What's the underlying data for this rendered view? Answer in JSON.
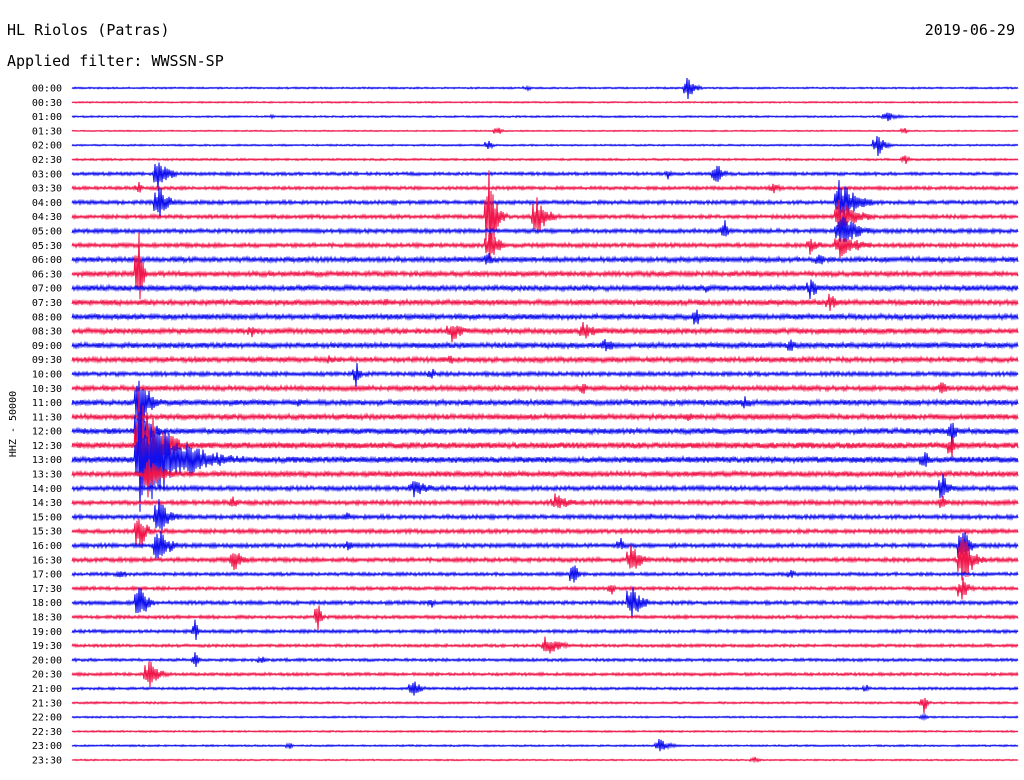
{
  "header": {
    "station": "HL Riolos (Patras)",
    "date": "2019-06-29",
    "filter": "Applied filter: WWSSN-SP"
  },
  "colors": {
    "trace_a": "#1010ee",
    "trace_b": "#f0164a",
    "background": "#ffffff",
    "text": "#000000"
  },
  "chart_data": {
    "type": "line",
    "ylabel": "HHZ - 50000",
    "row_labels": [
      "00:00",
      "00:30",
      "01:00",
      "01:30",
      "02:00",
      "02:30",
      "03:00",
      "03:30",
      "04:00",
      "04:30",
      "05:00",
      "05:30",
      "06:00",
      "06:30",
      "07:00",
      "07:30",
      "08:00",
      "08:30",
      "09:00",
      "09:30",
      "10:00",
      "10:30",
      "11:00",
      "11:30",
      "12:00",
      "12:30",
      "13:00",
      "13:30",
      "14:00",
      "14:30",
      "15:00",
      "15:30",
      "16:00",
      "16:30",
      "17:00",
      "17:30",
      "18:00",
      "18:30",
      "19:00",
      "19:30",
      "20:00",
      "20:30",
      "21:00",
      "21:30",
      "22:00",
      "22:30",
      "23:00",
      "23:30"
    ],
    "row_noise_level": [
      0.8,
      0.7,
      0.8,
      0.6,
      0.8,
      1.0,
      1.5,
      1.6,
      1.8,
      1.8,
      2.0,
      2.0,
      2.4,
      2.4,
      2.6,
      2.6,
      2.6,
      2.6,
      2.6,
      2.4,
      2.0,
      2.4,
      2.6,
      2.6,
      2.8,
      3.0,
      3.0,
      2.6,
      2.2,
      2.2,
      2.0,
      2.0,
      2.0,
      2.0,
      1.6,
      1.6,
      1.8,
      1.6,
      1.6,
      1.4,
      1.4,
      1.4,
      1.2,
      1.0,
      0.8,
      0.8,
      0.8,
      0.7
    ],
    "events": [
      {
        "row": 0,
        "t": 0.65,
        "amp": 14,
        "dur": 0.02
      },
      {
        "row": 0,
        "t": 0.48,
        "amp": 3,
        "dur": 0.02
      },
      {
        "row": 2,
        "t": 0.86,
        "amp": 6,
        "dur": 0.03
      },
      {
        "row": 2,
        "t": 0.21,
        "amp": 2,
        "dur": 0.02
      },
      {
        "row": 3,
        "t": 0.88,
        "amp": 4,
        "dur": 0.01
      },
      {
        "row": 3,
        "t": 0.45,
        "amp": 6,
        "dur": 0.01
      },
      {
        "row": 4,
        "t": 0.44,
        "amp": 8,
        "dur": 0.01
      },
      {
        "row": 4,
        "t": 0.85,
        "amp": 16,
        "dur": 0.02
      },
      {
        "row": 5,
        "t": 0.88,
        "amp": 8,
        "dur": 0.01
      },
      {
        "row": 6,
        "t": 0.68,
        "amp": 14,
        "dur": 0.02
      },
      {
        "row": 6,
        "t": 0.09,
        "amp": 20,
        "dur": 0.03
      },
      {
        "row": 6,
        "t": 0.63,
        "amp": 6,
        "dur": 0.02
      },
      {
        "row": 7,
        "t": 0.74,
        "amp": 8,
        "dur": 0.02
      },
      {
        "row": 7,
        "t": 0.07,
        "amp": 8,
        "dur": 0.01
      },
      {
        "row": 8,
        "t": 0.09,
        "amp": 22,
        "dur": 0.03
      },
      {
        "row": 8,
        "t": 0.81,
        "amp": 26,
        "dur": 0.05
      },
      {
        "row": 9,
        "t": 0.44,
        "amp": 60,
        "dur": 0.02
      },
      {
        "row": 9,
        "t": 0.49,
        "amp": 26,
        "dur": 0.03
      },
      {
        "row": 9,
        "t": 0.81,
        "amp": 22,
        "dur": 0.05
      },
      {
        "row": 10,
        "t": 0.69,
        "amp": 12,
        "dur": 0.01
      },
      {
        "row": 10,
        "t": 0.81,
        "amp": 22,
        "dur": 0.05
      },
      {
        "row": 11,
        "t": 0.44,
        "amp": 18,
        "dur": 0.03
      },
      {
        "row": 11,
        "t": 0.78,
        "amp": 10,
        "dur": 0.03
      },
      {
        "row": 11,
        "t": 0.81,
        "amp": 18,
        "dur": 0.05
      },
      {
        "row": 12,
        "t": 0.44,
        "amp": 10,
        "dur": 0.02
      },
      {
        "row": 12,
        "t": 0.79,
        "amp": 12,
        "dur": 0.01
      },
      {
        "row": 13,
        "t": 0.07,
        "amp": 60,
        "dur": 0.01
      },
      {
        "row": 14,
        "t": 0.78,
        "amp": 12,
        "dur": 0.03
      },
      {
        "row": 14,
        "t": 0.67,
        "amp": 8,
        "dur": 0.01
      },
      {
        "row": 15,
        "t": 0.8,
        "amp": 10,
        "dur": 0.03
      },
      {
        "row": 15,
        "t": 0.33,
        "amp": 6,
        "dur": 0.02
      },
      {
        "row": 16,
        "t": 0.66,
        "amp": 16,
        "dur": 0.01
      },
      {
        "row": 17,
        "t": 0.4,
        "amp": 14,
        "dur": 0.03
      },
      {
        "row": 17,
        "t": 0.19,
        "amp": 8,
        "dur": 0.02
      },
      {
        "row": 17,
        "t": 0.54,
        "amp": 10,
        "dur": 0.04
      },
      {
        "row": 18,
        "t": 0.56,
        "amp": 8,
        "dur": 0.05
      },
      {
        "row": 18,
        "t": 0.76,
        "amp": 12,
        "dur": 0.01
      },
      {
        "row": 19,
        "t": 0.27,
        "amp": 6,
        "dur": 0.02
      },
      {
        "row": 19,
        "t": 0.4,
        "amp": 10,
        "dur": 0.01
      },
      {
        "row": 20,
        "t": 0.3,
        "amp": 16,
        "dur": 0.01
      },
      {
        "row": 20,
        "t": 0.38,
        "amp": 8,
        "dur": 0.01
      },
      {
        "row": 21,
        "t": 0.54,
        "amp": 10,
        "dur": 0.01
      },
      {
        "row": 21,
        "t": 0.92,
        "amp": 12,
        "dur": 0.01
      },
      {
        "row": 22,
        "t": 0.07,
        "amp": 40,
        "dur": 0.03
      },
      {
        "row": 22,
        "t": 0.24,
        "amp": 8,
        "dur": 0.01
      },
      {
        "row": 22,
        "t": 0.71,
        "amp": 8,
        "dur": 0.03
      },
      {
        "row": 23,
        "t": 0.65,
        "amp": 6,
        "dur": 0.03
      },
      {
        "row": 24,
        "t": 0.07,
        "amp": 40,
        "dur": 0.03
      },
      {
        "row": 24,
        "t": 0.93,
        "amp": 22,
        "dur": 0.01
      },
      {
        "row": 25,
        "t": 0.07,
        "amp": 60,
        "dur": 0.06
      },
      {
        "row": 25,
        "t": 0.93,
        "amp": 16,
        "dur": 0.01
      },
      {
        "row": 26,
        "t": 0.07,
        "amp": 60,
        "dur": 0.12
      },
      {
        "row": 26,
        "t": 0.9,
        "amp": 12,
        "dur": 0.02
      },
      {
        "row": 27,
        "t": 0.08,
        "amp": 24,
        "dur": 0.04
      },
      {
        "row": 28,
        "t": 0.36,
        "amp": 10,
        "dur": 0.05
      },
      {
        "row": 28,
        "t": 0.92,
        "amp": 20,
        "dur": 0.02
      },
      {
        "row": 29,
        "t": 0.17,
        "amp": 10,
        "dur": 0.01
      },
      {
        "row": 29,
        "t": 0.51,
        "amp": 10,
        "dur": 0.05
      },
      {
        "row": 29,
        "t": 0.92,
        "amp": 12,
        "dur": 0.01
      },
      {
        "row": 30,
        "t": 0.09,
        "amp": 26,
        "dur": 0.03
      },
      {
        "row": 30,
        "t": 0.29,
        "amp": 6,
        "dur": 0.02
      },
      {
        "row": 30,
        "t": 0.61,
        "amp": 6,
        "dur": 0.01
      },
      {
        "row": 31,
        "t": 0.07,
        "amp": 30,
        "dur": 0.02
      },
      {
        "row": 32,
        "t": 0.09,
        "amp": 26,
        "dur": 0.03
      },
      {
        "row": 32,
        "t": 0.29,
        "amp": 6,
        "dur": 0.03
      },
      {
        "row": 32,
        "t": 0.58,
        "amp": 10,
        "dur": 0.01
      },
      {
        "row": 32,
        "t": 0.94,
        "amp": 28,
        "dur": 0.02
      },
      {
        "row": 33,
        "t": 0.17,
        "amp": 14,
        "dur": 0.03
      },
      {
        "row": 33,
        "t": 0.59,
        "amp": 18,
        "dur": 0.03
      },
      {
        "row": 33,
        "t": 0.94,
        "amp": 36,
        "dur": 0.03
      },
      {
        "row": 34,
        "t": 0.05,
        "amp": 6,
        "dur": 0.02
      },
      {
        "row": 34,
        "t": 0.53,
        "amp": 20,
        "dur": 0.01
      },
      {
        "row": 34,
        "t": 0.76,
        "amp": 8,
        "dur": 0.01
      },
      {
        "row": 35,
        "t": 0.57,
        "amp": 8,
        "dur": 0.01
      },
      {
        "row": 35,
        "t": 0.94,
        "amp": 16,
        "dur": 0.02
      },
      {
        "row": 36,
        "t": 0.07,
        "amp": 32,
        "dur": 0.02
      },
      {
        "row": 36,
        "t": 0.59,
        "amp": 24,
        "dur": 0.03
      },
      {
        "row": 36,
        "t": 0.38,
        "amp": 6,
        "dur": 0.01
      },
      {
        "row": 37,
        "t": 0.26,
        "amp": 18,
        "dur": 0.01
      },
      {
        "row": 38,
        "t": 0.13,
        "amp": 12,
        "dur": 0.01
      },
      {
        "row": 39,
        "t": 0.5,
        "amp": 12,
        "dur": 0.04
      },
      {
        "row": 40,
        "t": 0.13,
        "amp": 10,
        "dur": 0.01
      },
      {
        "row": 40,
        "t": 0.2,
        "amp": 6,
        "dur": 0.01
      },
      {
        "row": 41,
        "t": 0.08,
        "amp": 18,
        "dur": 0.03
      },
      {
        "row": 42,
        "t": 0.36,
        "amp": 12,
        "dur": 0.02
      },
      {
        "row": 42,
        "t": 0.84,
        "amp": 6,
        "dur": 0.01
      },
      {
        "row": 43,
        "t": 0.9,
        "amp": 14,
        "dur": 0.01
      },
      {
        "row": 44,
        "t": 0.9,
        "amp": 6,
        "dur": 0.01
      },
      {
        "row": 46,
        "t": 0.62,
        "amp": 8,
        "dur": 0.03
      },
      {
        "row": 46,
        "t": 0.23,
        "amp": 4,
        "dur": 0.01
      },
      {
        "row": 47,
        "t": 0.72,
        "amp": 4,
        "dur": 0.02
      }
    ]
  }
}
